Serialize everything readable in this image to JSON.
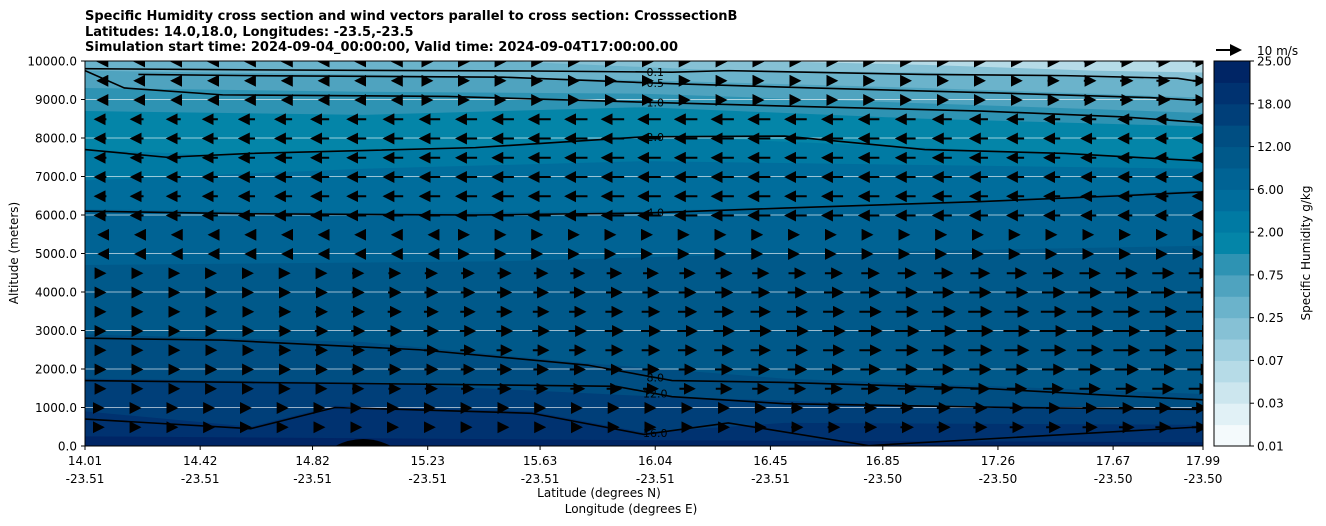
{
  "chart_data": {
    "type": "heatmap",
    "title_lines": [
      "Specific Humidity cross section and wind vectors parallel to cross section: CrosssectionB",
      "Latitudes: 14.0,18.0, Longitudes: -23.5,-23.5",
      "Simulation start time: 2024-09-04_00:00:00, Valid time: 2024-09-04T17:00:00.00"
    ],
    "ylabel": "Altitude (meters)",
    "xlabel_lat": "Latitude (degrees N)",
    "xlabel_lon": "Longitude (degrees E)",
    "ylim": [
      0,
      10000
    ],
    "yticks": [
      "0.0",
      "1000.0",
      "2000.0",
      "3000.0",
      "4000.0",
      "5000.0",
      "6000.0",
      "7000.0",
      "8000.0",
      "9000.0",
      "10000.0"
    ],
    "xticks": [
      {
        "lat": "14.01",
        "lon": "-23.51"
      },
      {
        "lat": "14.42",
        "lon": "-23.51"
      },
      {
        "lat": "14.82",
        "lon": "-23.51"
      },
      {
        "lat": "15.23",
        "lon": "-23.51"
      },
      {
        "lat": "15.63",
        "lon": "-23.51"
      },
      {
        "lat": "16.04",
        "lon": "-23.51"
      },
      {
        "lat": "16.45",
        "lon": "-23.51"
      },
      {
        "lat": "16.85",
        "lon": "-23.50"
      },
      {
        "lat": "17.26",
        "lon": "-23.50"
      },
      {
        "lat": "17.67",
        "lon": "-23.50"
      },
      {
        "lat": "17.99",
        "lon": "-23.50"
      }
    ],
    "colorbar": {
      "label": "Specific Humidity g/kg",
      "levels": [
        0.01,
        0.02,
        0.03,
        0.05,
        0.07,
        0.1,
        0.25,
        0.5,
        0.75,
        1.0,
        2.0,
        4.0,
        6.0,
        8.0,
        12.0,
        16.0,
        18.0,
        20.0,
        25.0
      ],
      "tick_labels": [
        "0.01",
        "0.03",
        "0.07",
        "0.25",
        "0.75",
        "2.00",
        "6.00",
        "12.00",
        "18.00",
        "25.00"
      ],
      "colors": [
        "#f4fafc",
        "#e1f1f6",
        "#cce6ee",
        "#b6dbe7",
        "#9fcfdf",
        "#86c1d5",
        "#6bb3cb",
        "#4fa3bf",
        "#2e93b3",
        "#0485a8",
        "#007aa3",
        "#006d9c",
        "#006394",
        "#00598a",
        "#004e82",
        "#003f79",
        "#003270",
        "#002565"
      ]
    },
    "contours": [
      {
        "label": "0.1",
        "points": [
          [
            14.01,
            9800
          ],
          [
            14.6,
            9770
          ],
          [
            15.6,
            9740
          ],
          [
            16.1,
            9710
          ],
          [
            16.3,
            9750
          ],
          [
            17.0,
            9650
          ],
          [
            17.5,
            9620
          ],
          [
            17.9,
            9550
          ],
          [
            17.99,
            9450
          ]
        ]
      },
      {
        "label": "0.5",
        "points": [
          [
            14.2,
            9650
          ],
          [
            14.6,
            9620
          ],
          [
            15.5,
            9580
          ],
          [
            16.1,
            9410
          ],
          [
            16.6,
            9300
          ],
          [
            17.3,
            9160
          ],
          [
            17.8,
            9050
          ],
          [
            17.99,
            8970
          ]
        ]
      },
      {
        "label": "1.0",
        "points": [
          [
            14.01,
            9750
          ],
          [
            14.15,
            9300
          ],
          [
            14.5,
            9120
          ],
          [
            15.3,
            9080
          ],
          [
            16.0,
            8930
          ],
          [
            16.5,
            8830
          ],
          [
            17.2,
            8700
          ],
          [
            17.7,
            8550
          ],
          [
            17.99,
            8400
          ]
        ]
      },
      {
        "label": "2.0",
        "points": [
          [
            14.01,
            7700
          ],
          [
            14.3,
            7500
          ],
          [
            14.6,
            7600
          ],
          [
            15.4,
            7750
          ],
          [
            16.0,
            8030
          ],
          [
            16.5,
            8050
          ],
          [
            17.0,
            7700
          ],
          [
            17.5,
            7600
          ],
          [
            17.99,
            7400
          ]
        ]
      },
      {
        "label": "4.0",
        "points": [
          [
            14.01,
            6100
          ],
          [
            14.6,
            6030
          ],
          [
            15.4,
            6000
          ],
          [
            16.0,
            6050
          ],
          [
            16.5,
            6180
          ],
          [
            17.2,
            6350
          ],
          [
            17.7,
            6500
          ],
          [
            17.99,
            6600
          ]
        ]
      },
      {
        "label": "8.0",
        "points": [
          [
            14.01,
            2800
          ],
          [
            14.5,
            2750
          ],
          [
            15.2,
            2500
          ],
          [
            15.8,
            2100
          ],
          [
            16.1,
            1700
          ],
          [
            16.5,
            1650
          ],
          [
            17.2,
            1500
          ],
          [
            17.7,
            1300
          ],
          [
            17.99,
            1200
          ]
        ]
      },
      {
        "label": "12.0",
        "points": [
          [
            14.01,
            1700
          ],
          [
            14.6,
            1650
          ],
          [
            15.3,
            1600
          ],
          [
            15.9,
            1550
          ],
          [
            16.1,
            1280
          ],
          [
            16.5,
            1100
          ],
          [
            17.3,
            1000
          ],
          [
            17.99,
            950
          ]
        ]
      },
      {
        "label": "16.0",
        "points": [
          [
            14.01,
            700
          ],
          [
            14.6,
            450
          ],
          [
            14.9,
            1000
          ],
          [
            15.6,
            850
          ],
          [
            16.0,
            300
          ],
          [
            16.3,
            600
          ],
          [
            16.8,
            10
          ],
          [
            17.99,
            500
          ]
        ]
      }
    ],
    "quiver_key": {
      "label": "10 m/s"
    }
  }
}
